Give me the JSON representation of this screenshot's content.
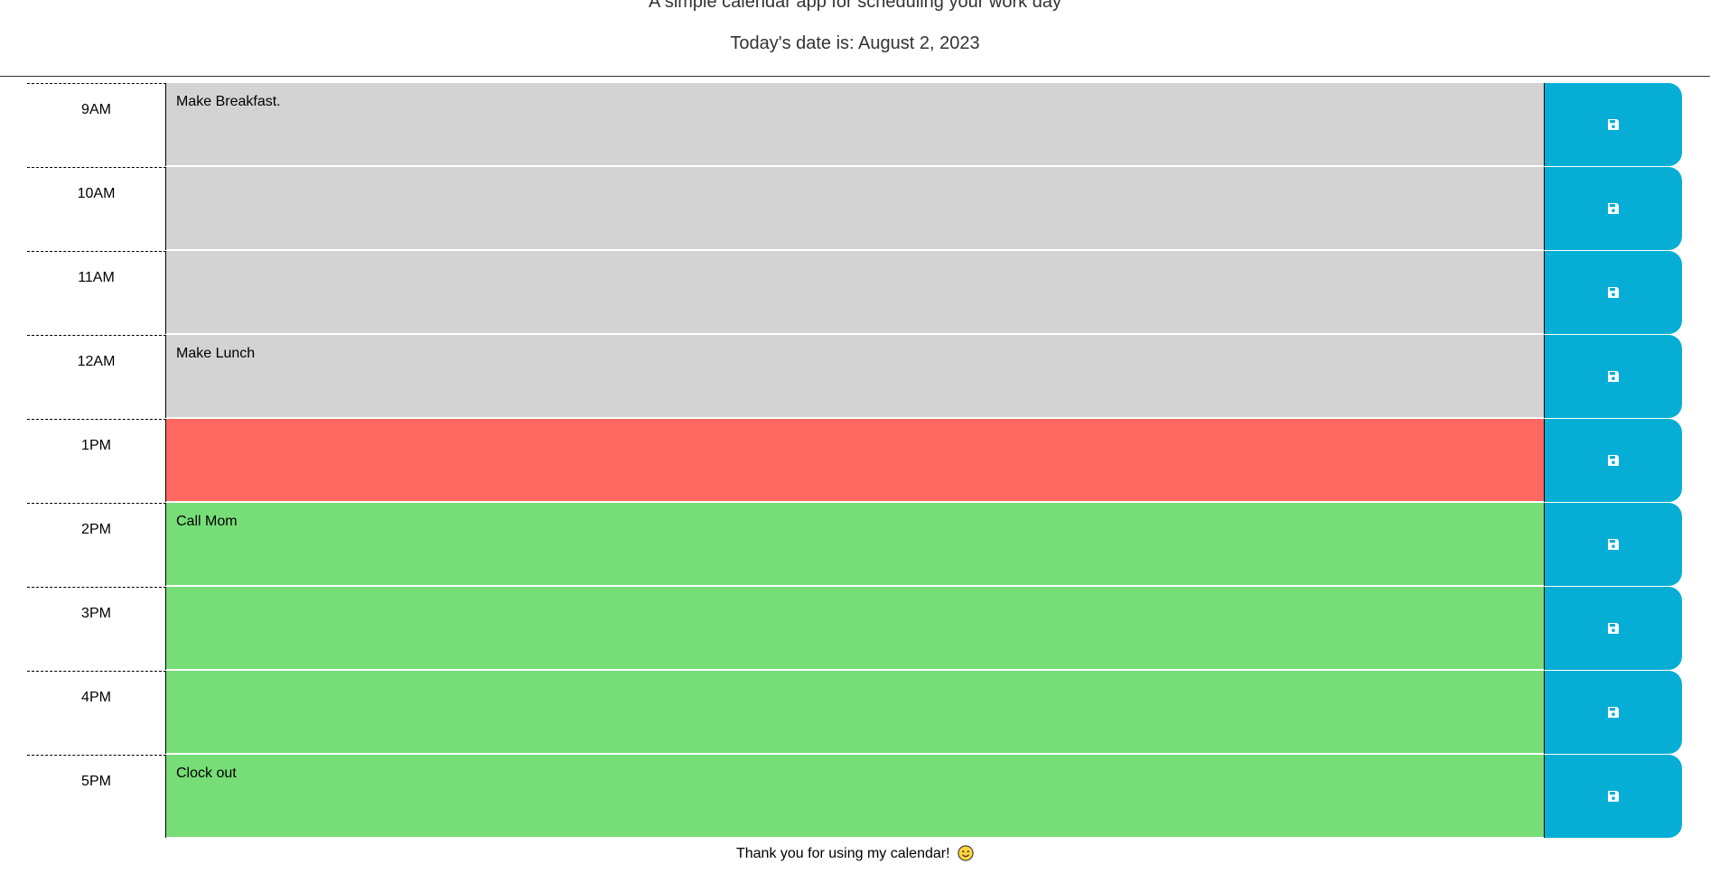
{
  "header": {
    "lead": "A simple calendar app for scheduling your work day",
    "date_text": "Today's date is: August 2, 2023"
  },
  "colors": {
    "past": "#d3d3d3",
    "present": "#ff6961",
    "future": "#77dd77",
    "save_button": "#06aed5"
  },
  "rows": [
    {
      "hour": "9AM",
      "text": "Make Breakfast.",
      "state": "past",
      "save_icon": "floppy-disk-icon"
    },
    {
      "hour": "10AM",
      "text": "",
      "state": "past",
      "save_icon": "floppy-disk-icon"
    },
    {
      "hour": "11AM",
      "text": "",
      "state": "past",
      "save_icon": "floppy-disk-icon"
    },
    {
      "hour": "12AM",
      "text": "Make Lunch",
      "state": "past",
      "save_icon": "floppy-disk-icon"
    },
    {
      "hour": "1PM",
      "text": "",
      "state": "present",
      "save_icon": "floppy-disk-icon"
    },
    {
      "hour": "2PM",
      "text": "Call Mom",
      "state": "future",
      "save_icon": "floppy-disk-icon"
    },
    {
      "hour": "3PM",
      "text": "",
      "state": "future",
      "save_icon": "floppy-disk-icon"
    },
    {
      "hour": "4PM",
      "text": "",
      "state": "future",
      "save_icon": "floppy-disk-icon"
    },
    {
      "hour": "5PM",
      "text": "Clock out",
      "state": "future",
      "save_icon": "floppy-disk-icon"
    }
  ],
  "footer": {
    "text": "Thank you for using my calendar!",
    "emoji_icon": "smiley-face-icon"
  }
}
